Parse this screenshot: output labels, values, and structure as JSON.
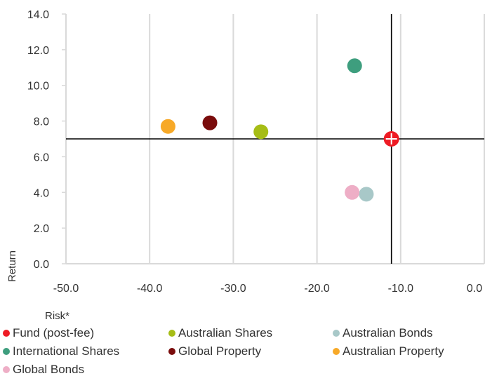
{
  "chart_data": {
    "type": "scatter",
    "xlabel": "Risk*",
    "ylabel": "Return",
    "xlim": [
      -50,
      0
    ],
    "ylim": [
      0,
      14
    ],
    "x_ticks": [
      "-50.0",
      "-40.0",
      "-30.0",
      "-20.0",
      "-10.0",
      "0.0"
    ],
    "x_tick_values": [
      -50,
      -40,
      -30,
      -20,
      -10,
      0
    ],
    "y_ticks": [
      "0.0",
      "2.0",
      "4.0",
      "6.0",
      "8.0",
      "10.0",
      "12.0",
      "14.0"
    ],
    "y_tick_values": [
      0,
      2,
      4,
      6,
      8,
      10,
      12,
      14
    ],
    "grid": "vertical",
    "reference_lines": {
      "x": -11.1,
      "y": 7.0
    },
    "series": [
      {
        "name": "Fund (post-fee)",
        "color": "#ee1c25",
        "x": -11.1,
        "y": 7.0,
        "marker": "crosshair-circle"
      },
      {
        "name": "Australian Shares",
        "color": "#a6bd16",
        "x": -26.7,
        "y": 7.4
      },
      {
        "name": "Australian Bonds",
        "color": "#a8c8c8",
        "x": -14.1,
        "y": 3.9
      },
      {
        "name": "International Shares",
        "color": "#3e9e7e",
        "x": -15.5,
        "y": 11.1
      },
      {
        "name": "Global Property",
        "color": "#7a0c0c",
        "x": -32.8,
        "y": 7.9
      },
      {
        "name": "Australian Property",
        "color": "#f7a928",
        "x": -37.8,
        "y": 7.7
      },
      {
        "name": "Global Bonds",
        "color": "#eeaec6",
        "x": -15.8,
        "y": 4.0
      }
    ],
    "legend_position": "bottom"
  }
}
